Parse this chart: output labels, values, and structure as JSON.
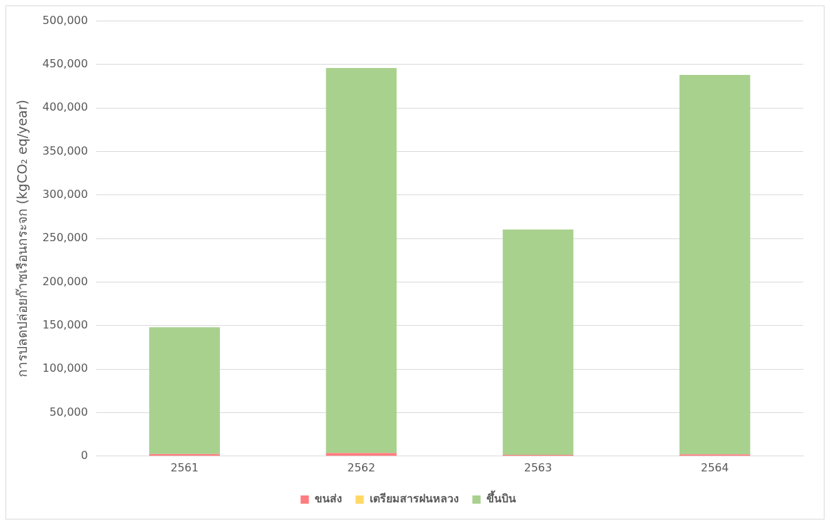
{
  "chart_data": {
    "type": "bar",
    "stacked": true,
    "ylabel": "การปลดปล่อยก๊าซเรือนกระจก (kgCO₂ eq/year)",
    "categories": [
      "2561",
      "2562",
      "2563",
      "2564"
    ],
    "series": [
      {
        "name": "ขนส่ง",
        "color": "#ff7c80",
        "values": [
          2500,
          3500,
          1500,
          2000
        ]
      },
      {
        "name": "เตรียมสารฝนหลวง",
        "color": "#ffd966",
        "values": [
          0,
          0,
          0,
          0
        ]
      },
      {
        "name": "ขึ้นบิน",
        "color": "#a9d18e",
        "values": [
          145500,
          442500,
          259000,
          436000
        ]
      }
    ],
    "ylim": [
      0,
      500000
    ],
    "yticks": [
      {
        "value": 0,
        "label": "0"
      },
      {
        "value": 50000,
        "label": "50,000"
      },
      {
        "value": 100000,
        "label": "100,000"
      },
      {
        "value": 150000,
        "label": "150,000"
      },
      {
        "value": 200000,
        "label": "200,000"
      },
      {
        "value": 250000,
        "label": "250,000"
      },
      {
        "value": 300000,
        "label": "300,000"
      },
      {
        "value": 350000,
        "label": "350,000"
      },
      {
        "value": 400000,
        "label": "400,000"
      },
      {
        "value": 450000,
        "label": "450,000"
      },
      {
        "value": 500000,
        "label": "500,000"
      }
    ],
    "grid": "y",
    "legend": "bottom"
  }
}
